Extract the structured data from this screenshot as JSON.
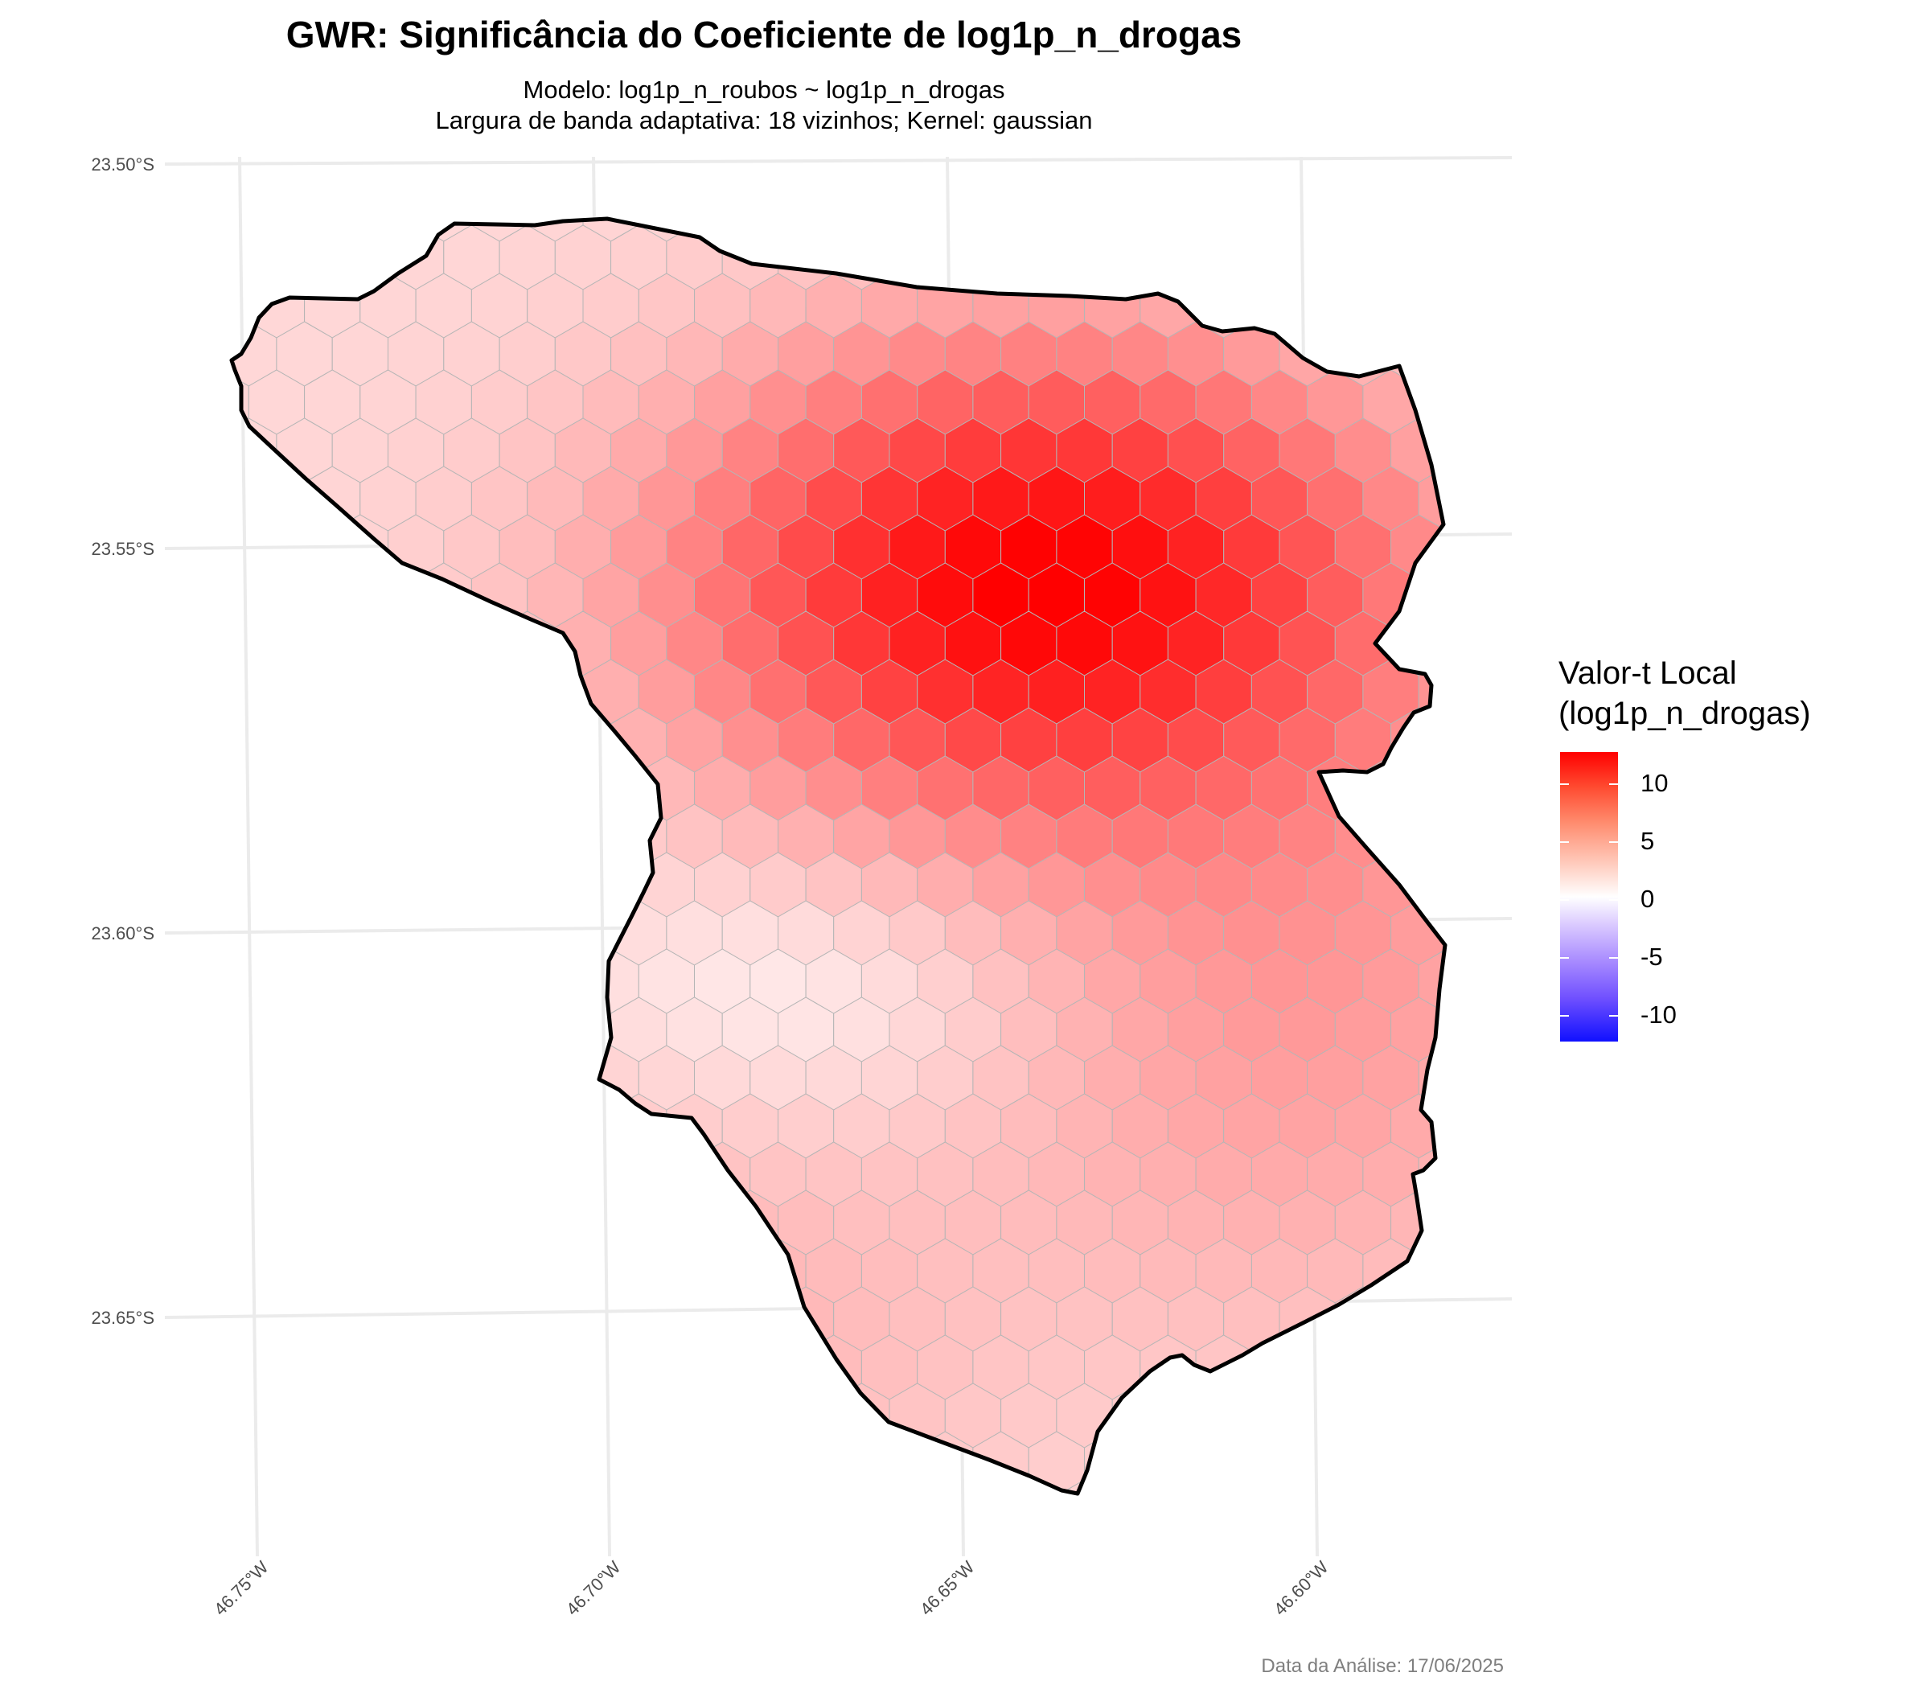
{
  "title": "GWR: Significância do Coeficiente de log1p_n_drogas",
  "subtitle_line1": "Modelo: log1p_n_roubos ~ log1p_n_drogas",
  "subtitle_line2": "Largura de banda adaptativa: 18 vizinhos; Kernel: gaussian",
  "legend": {
    "title_line1": "Valor-t Local",
    "title_line2": "(log1p_n_drogas)",
    "tick_labels": [
      "10",
      "5",
      "0",
      "-5",
      "-10"
    ],
    "colors": {
      "high": "#ff0000",
      "mid": "#ffffff",
      "low": "#0000ff"
    },
    "range": [
      -12,
      12
    ]
  },
  "axes": {
    "y_labels": [
      "23.50°S",
      "23.55°S",
      "23.60°S",
      "23.65°S"
    ],
    "x_labels": [
      "46.75°W",
      "46.70°W",
      "46.65°W",
      "46.60°W"
    ]
  },
  "map": {
    "fill_variable": "local t-value",
    "peak_value": 12,
    "min_value": 0.3,
    "cell_shape": "hexagon",
    "boundary_color": "#000000"
  },
  "footer": "Data da Análise: 17/06/2025"
}
